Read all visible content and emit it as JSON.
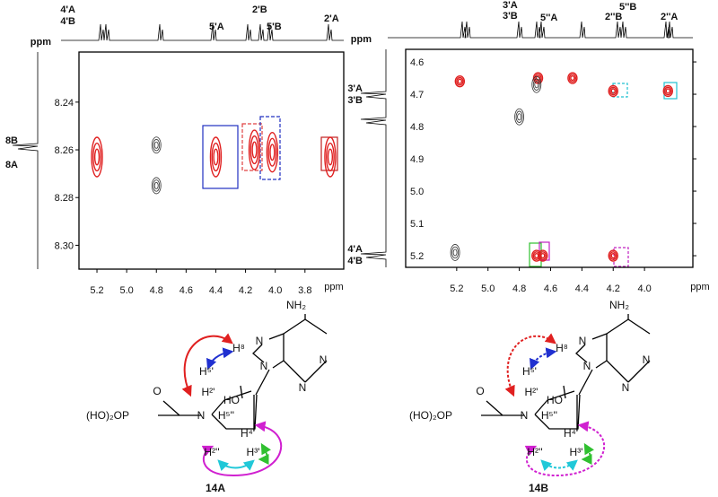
{
  "chart_data": [
    {
      "type": "contour",
      "x_label": "ppm",
      "top_axis_label": "ppm",
      "xlim": [
        5.321,
        3.539
      ],
      "ylim": [
        8.219,
        8.31
      ],
      "xticks": [
        5.2,
        {
          "value": 5,
          "label": "5.0"
        },
        4.8,
        4.6,
        4.4,
        4.2,
        {
          "value": 4,
          "label": "4.0"
        },
        3.8
      ],
      "yticks": [
        8.24,
        8.26,
        8.28,
        {
          "value": 8.3,
          "label": "8.30"
        }
      ],
      "series": [
        {
          "color": "#e02020",
          "x": [
            5.2,
            4.4,
            4.14,
            4.02,
            3.63
          ],
          "y": [
            8.263,
            8.263,
            8.26,
            8.261,
            8.263
          ]
        },
        {
          "color": "#333333",
          "x": [
            4.8,
            4.8
          ],
          "y": [
            8.258,
            8.275
          ]
        }
      ],
      "annotations": [
        "4'A",
        "4'B",
        "5'A",
        "2'B",
        "5'B",
        "2'A",
        "8B",
        "8A"
      ]
    },
    {
      "type": "contour",
      "x_label": "ppm",
      "top_axis_label": "ppm",
      "xlim": [
        5.526,
        3.691
      ],
      "ylim": [
        4.561,
        5.236
      ],
      "xticks": [
        5.2,
        {
          "value": 5,
          "label": "5.0"
        },
        4.8,
        4.6,
        4.4,
        4.2,
        {
          "value": 4,
          "label": "4.0"
        }
      ],
      "yticks": [
        4.6,
        4.7,
        4.8,
        4.9,
        {
          "value": 5,
          "label": "5.0"
        },
        5.1,
        5.2
      ],
      "series": [
        {
          "color": "#e02020",
          "x": [
            5.18,
            4.68,
            4.46,
            4.2,
            3.85,
            4.69,
            4.65,
            4.2
          ],
          "y": [
            4.66,
            4.65,
            4.65,
            4.69,
            4.69,
            5.2,
            5.2,
            5.2
          ]
        },
        {
          "color": "#333333",
          "x": [
            4.69,
            4.8,
            5.21
          ],
          "y": [
            4.67,
            4.77,
            5.19
          ]
        }
      ],
      "annotations": [
        "3'A",
        "3'B",
        "5''A",
        "2''B",
        "5''B",
        "2''A",
        "3'A",
        "3'B",
        "4'A",
        "4'B"
      ]
    }
  ],
  "structures": [
    {
      "name": "14A",
      "labels": [
        "NH₂",
        "H⁸",
        "N",
        "N",
        "N",
        "N",
        "H⁵'",
        "H²'",
        "HO",
        "(HO)₂OP",
        "O",
        "N",
        "H⁵''",
        "H⁴'",
        "H²''",
        "H³'"
      ]
    },
    {
      "name": "14B",
      "labels": [
        "NH₂",
        "H⁸",
        "N",
        "N",
        "N",
        "N",
        "H⁵'",
        "H²'",
        "HO",
        "(HO)₂OP",
        "O",
        "N",
        "H⁵''",
        "H⁴'",
        "H²''",
        "H³'"
      ]
    }
  ]
}
